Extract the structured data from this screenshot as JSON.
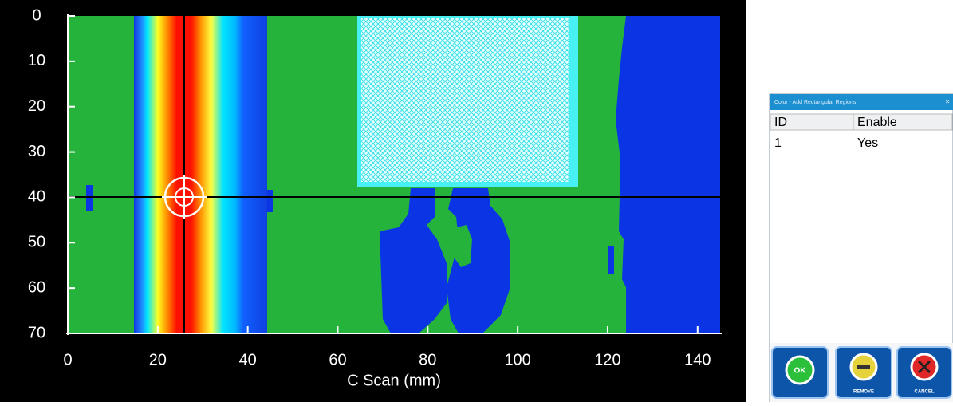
{
  "cscan": {
    "xlabel": "C Scan (mm)",
    "xlim": [
      0,
      145
    ],
    "ylim": [
      0,
      70
    ],
    "xticks": [
      0,
      20,
      40,
      60,
      80,
      100,
      120,
      140
    ],
    "yticks": [
      0,
      10,
      20,
      30,
      40,
      50,
      60,
      70
    ]
  },
  "dialog": {
    "title": "Color - Add Rectangular Regions",
    "close": "×",
    "table": {
      "header": [
        "ID",
        "Enable"
      ],
      "rows": [
        [
          "1",
          "Yes"
        ]
      ]
    },
    "buttons": [
      "OK",
      "REMOVE",
      "CANCEL"
    ]
  }
}
